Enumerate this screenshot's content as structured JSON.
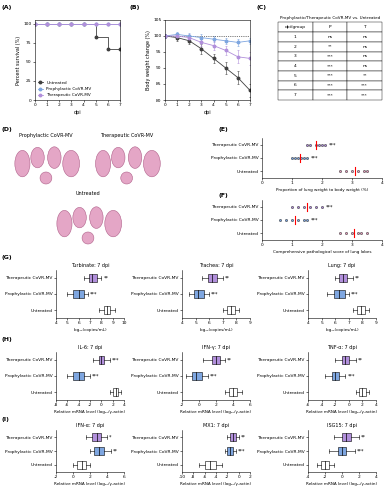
{
  "panel_labels": [
    "(A)",
    "(B)",
    "(C)",
    "(D)",
    "(E)",
    "(F)",
    "(G)",
    "(H)",
    "(I)"
  ],
  "chart_data": [
    {
      "type": "line",
      "x_label": "dpi",
      "y_label": "Percent survival (%)",
      "x": [
        0,
        1,
        2,
        3,
        4,
        5,
        6,
        7
      ],
      "xlim": [
        0,
        7
      ],
      "xticks": [
        0,
        1,
        2,
        3,
        4,
        5,
        6,
        7
      ],
      "ylim": [
        0,
        105
      ],
      "yticks": [
        0,
        25,
        50,
        75,
        100
      ],
      "legend": "lower left",
      "series": [
        {
          "name": "Untreated",
          "color": "#404040",
          "marker": "circle",
          "line_style": "steps",
          "values": [
            100,
            100,
            100,
            100,
            100,
            83,
            67,
            67
          ]
        },
        {
          "name": "Prophylactic CoVR-MV",
          "color": "#7ea6e0",
          "marker": "circle",
          "line_style": "steps",
          "values": [
            100,
            100,
            100,
            100,
            100,
            100,
            100,
            100
          ]
        },
        {
          "name": "Therapeutic CoVR-MV",
          "color": "#b18fdb",
          "marker": "circle",
          "line_style": "steps",
          "values": [
            100,
            100,
            100,
            100,
            100,
            100,
            100,
            100
          ]
        }
      ]
    },
    {
      "type": "line",
      "x_label": "dpi",
      "y_label": "Body weight change (%)",
      "x": [
        0,
        1,
        2,
        3,
        4,
        5,
        6,
        7
      ],
      "xlim": [
        0,
        7
      ],
      "xticks": [
        0,
        1,
        2,
        3,
        4,
        5,
        6,
        7
      ],
      "ylim": [
        80,
        105
      ],
      "yticks": [
        80,
        85,
        90,
        95,
        100,
        105
      ],
      "baseline": 100,
      "series": [
        {
          "name": "Untreated",
          "color": "#404040",
          "marker": "circle",
          "line_style": "solid",
          "values": [
            100,
            99.5,
            98.5,
            96,
            93,
            90,
            87,
            83
          ],
          "errors": [
            0.5,
            1,
            1,
            1.5,
            1.5,
            2,
            2,
            2
          ]
        },
        {
          "name": "Prophylactic CoVR-MV",
          "color": "#7ea6e0",
          "marker": "circle",
          "line_style": "solid",
          "values": [
            100,
            100.5,
            100,
            99.5,
            99,
            98.5,
            98,
            98.5
          ],
          "errors": [
            0.5,
            0.8,
            0.8,
            1,
            1,
            1,
            1,
            1
          ]
        },
        {
          "name": "Therapeutic CoVR-MV",
          "color": "#b18fdb",
          "marker": "circle",
          "line_style": "solid",
          "values": [
            100,
            100,
            99.5,
            98,
            97,
            95.5,
            93.5,
            93
          ],
          "errors": [
            0.5,
            0.8,
            1,
            1,
            1.5,
            1.5,
            2,
            2
          ]
        }
      ]
    },
    {
      "type": "dot",
      "orientation": "horizontal",
      "x_label": "Proportion of lung weight to body weight (%)",
      "categories": [
        "Therapeutic CoVR-MV",
        "Prophylactic CoVR-MV",
        "Untreated"
      ],
      "colors": [
        "#b18fdb",
        "#7ea6e0",
        "#e8a0c0"
      ],
      "values": [
        [
          1.5,
          1.6,
          1.8,
          1.9,
          2.0,
          2.1
        ],
        [
          1.0,
          1.1,
          1.2,
          1.3,
          1.4,
          1.5
        ],
        [
          2.6,
          2.8,
          3.0,
          3.2,
          3.4,
          3.5
        ]
      ],
      "means": [
        1.8,
        1.25,
        3.1
      ],
      "significance": [
        "***",
        "***",
        null
      ],
      "xlim": [
        0,
        4
      ],
      "xticks": [
        0,
        1,
        2,
        3,
        4
      ]
    },
    {
      "type": "dot",
      "orientation": "horizontal",
      "x_label": "Comprehensive pathological score of lung lobes",
      "categories": [
        "Therapeutic CoVR-MV",
        "Prophylactic CoVR-MV",
        "Untreated"
      ],
      "colors": [
        "#b18fdb",
        "#7ea6e0",
        "#e8a0c0"
      ],
      "values": [
        [
          1.0,
          1.2,
          1.4,
          1.6,
          1.8,
          2.0
        ],
        [
          0.6,
          0.8,
          1.0,
          1.2,
          1.4,
          1.5
        ],
        [
          2.6,
          2.8,
          3.0,
          3.2,
          3.3,
          3.5
        ]
      ],
      "means": [
        1.5,
        1.1,
        3.05
      ],
      "significance": [
        "***",
        "***",
        null
      ],
      "xlim": [
        0,
        4
      ],
      "xticks": [
        0,
        1,
        2,
        3,
        4
      ]
    },
    {
      "type": "box",
      "orientation": "horizontal",
      "title": "Turbinate: 7 dpi",
      "x_label": "log₁₀(copies/mL)",
      "categories": [
        "Therapeutic CoVR-MV",
        "Prophylactic CoVR-MV",
        "Untreated"
      ],
      "colors": [
        "#b18fdb",
        "#7ea6e0",
        "#ffffff"
      ],
      "box_stats": [
        {
          "min": 6.5,
          "q1": 6.9,
          "median": 7.2,
          "q3": 7.6,
          "max": 8.0
        },
        {
          "min": 5.0,
          "q1": 5.5,
          "median": 6.0,
          "q3": 6.5,
          "max": 6.8
        },
        {
          "min": 7.8,
          "q1": 8.2,
          "median": 8.5,
          "q3": 8.8,
          "max": 9.2
        }
      ],
      "significance": [
        "**",
        "***",
        null
      ],
      "xlim": [
        4,
        10
      ],
      "xticks": [
        4,
        5,
        6,
        7,
        8,
        9,
        10
      ]
    },
    {
      "type": "box",
      "orientation": "horizontal",
      "title": "Trachea: 7 dpi",
      "x_label": "log₁₀(copies/mL)",
      "categories": [
        "Therapeutic CoVR-MV",
        "Prophylactic CoVR-MV",
        "Untreated"
      ],
      "colors": [
        "#b18fdb",
        "#7ea6e0",
        "#ffffff"
      ],
      "box_stats": [
        {
          "min": 5.5,
          "q1": 5.9,
          "median": 6.2,
          "q3": 6.6,
          "max": 7.0
        },
        {
          "min": 4.5,
          "q1": 4.9,
          "median": 5.2,
          "q3": 5.6,
          "max": 6.0
        },
        {
          "min": 7.0,
          "q1": 7.3,
          "median": 7.6,
          "q3": 7.9,
          "max": 8.2
        }
      ],
      "significance": [
        "**",
        "***",
        null
      ],
      "xlim": [
        4,
        9
      ],
      "xticks": [
        4,
        5,
        6,
        7,
        8,
        9
      ]
    },
    {
      "type": "box",
      "orientation": "horizontal",
      "title": "Lung: 7 dpi",
      "x_label": "log₁₀(copies/mL)",
      "categories": [
        "Therapeutic CoVR-MV",
        "Prophylactic CoVR-MV",
        "Untreated"
      ],
      "colors": [
        "#b18fdb",
        "#7ea6e0",
        "#ffffff"
      ],
      "box_stats": [
        {
          "min": 6.0,
          "q1": 6.3,
          "median": 6.6,
          "q3": 6.9,
          "max": 7.3
        },
        {
          "min": 5.4,
          "q1": 5.9,
          "median": 6.3,
          "q3": 6.7,
          "max": 7.0
        },
        {
          "min": 7.3,
          "q1": 7.6,
          "median": 7.9,
          "q3": 8.2,
          "max": 8.5
        }
      ],
      "significance": [
        "**",
        "***",
        null
      ],
      "xlim": [
        4,
        9
      ],
      "xticks": [
        4,
        5,
        6,
        7,
        8,
        9
      ]
    },
    {
      "type": "box",
      "orientation": "horizontal",
      "title": "IL-6: 7 dpi",
      "x_label": "Relative mRNA level (log₁₀/γ-actin)",
      "categories": [
        "Therapeutic CoVR-MV",
        "Prophylactic CoVR-MV",
        "Untreated"
      ],
      "colors": [
        "#b18fdb",
        "#7ea6e0",
        "#ffffff"
      ],
      "box_stats": [
        {
          "min": -1.5,
          "q1": -0.5,
          "median": 0,
          "q3": 0.5,
          "max": 1.5
        },
        {
          "min": -6,
          "q1": -5,
          "median": -4,
          "q3": -3,
          "max": -2
        },
        {
          "min": 1.5,
          "q1": 2,
          "median": 2.5,
          "q3": 3,
          "max": 3.5
        }
      ],
      "significance": [
        "***",
        "***",
        null
      ],
      "xlim": [
        -8,
        4
      ],
      "xticks": [
        -8,
        -6,
        -4,
        -2,
        0,
        2,
        4
      ]
    },
    {
      "type": "box",
      "orientation": "horizontal",
      "title": "IFN-γ: 7 dpi",
      "x_label": "Relative mRNA level (log₁₀/γ-actin)",
      "categories": [
        "Therapeutic CoVR-MV",
        "Prophylactic CoVR-MV",
        "Untreated"
      ],
      "colors": [
        "#b18fdb",
        "#7ea6e0",
        "#ffffff"
      ],
      "box_stats": [
        {
          "min": 0.5,
          "q1": 1.5,
          "median": 2,
          "q3": 2.5,
          "max": 3
        },
        {
          "min": -1.5,
          "q1": -0.8,
          "median": -0.3,
          "q3": 0.3,
          "max": 1
        },
        {
          "min": 3,
          "q1": 3.5,
          "median": 4,
          "q3": 4.5,
          "max": 5
        }
      ],
      "significance": [
        "**",
        "***",
        null
      ],
      "xlim": [
        -2,
        6
      ],
      "xticks": [
        -2,
        0,
        2,
        4,
        6
      ]
    },
    {
      "type": "box",
      "orientation": "horizontal",
      "title": "TNF-α: 7 dpi",
      "x_label": "Relative mRNA level (log₁₀/γ-actin)",
      "categories": [
        "Therapeutic CoVR-MV",
        "Prophylactic CoVR-MV",
        "Untreated"
      ],
      "colors": [
        "#b18fdb",
        "#7ea6e0",
        "#ffffff"
      ],
      "box_stats": [
        {
          "min": -2,
          "q1": -1,
          "median": -0.5,
          "q3": 0,
          "max": 1
        },
        {
          "min": -3.5,
          "q1": -2.5,
          "median": -2,
          "q3": -1.5,
          "max": -0.5
        },
        {
          "min": 1,
          "q1": 1.5,
          "median": 2,
          "q3": 2.5,
          "max": 3
        }
      ],
      "significance": [
        "**",
        "***",
        null
      ],
      "xlim": [
        -6,
        4
      ],
      "xticks": [
        -6,
        -4,
        -2,
        0,
        2,
        4
      ]
    },
    {
      "type": "box",
      "orientation": "horizontal",
      "title": "IFN-α: 7 dpi",
      "x_label": "Relative mRNA level (log₁₀/γ-actin)",
      "categories": [
        "Therapeutic CoVR-MV",
        "Prophylactic CoVR-MV",
        "Untreated"
      ],
      "colors": [
        "#b18fdb",
        "#7ea6e0",
        "#ffffff"
      ],
      "box_stats": [
        {
          "min": 1.5,
          "q1": 2.2,
          "median": 2.8,
          "q3": 3.3,
          "max": 4
        },
        {
          "min": 2,
          "q1": 2.5,
          "median": 3,
          "q3": 3.6,
          "max": 4.5
        },
        {
          "min": 0,
          "q1": 0.5,
          "median": 1,
          "q3": 1.5,
          "max": 2
        }
      ],
      "significance": [
        "*",
        "**",
        null
      ],
      "xlim": [
        -2,
        6
      ],
      "xticks": [
        -2,
        0,
        2,
        4,
        6
      ]
    },
    {
      "type": "box",
      "orientation": "horizontal",
      "title": "MX1: 7 dpi",
      "x_label": "Relative mRNA level (log₁₀/γ-actin)",
      "categories": [
        "Therapeutic CoVR-MV",
        "Prophylactic CoVR-MV",
        "Untreated"
      ],
      "colors": [
        "#b18fdb",
        "#7ea6e0",
        "#ffffff"
      ],
      "box_stats": [
        {
          "min": -2,
          "q1": -1.5,
          "median": -1,
          "q3": -0.5,
          "max": 0
        },
        {
          "min": -2.5,
          "q1": -2,
          "median": -1.5,
          "q3": -1,
          "max": -0.5
        },
        {
          "min": -7,
          "q1": -6,
          "median": -5,
          "q3": -4,
          "max": -3
        }
      ],
      "significance": [
        "**",
        "***",
        null
      ],
      "xlim": [
        -10,
        2
      ],
      "xticks": [
        -10,
        -8,
        -6,
        -4,
        -2,
        0,
        2
      ]
    },
    {
      "type": "box",
      "orientation": "horizontal",
      "title": "ISG15: 7 dpi",
      "x_label": "Relative mRNA level (log₁₀/γ-actin)",
      "categories": [
        "Therapeutic CoVR-MV",
        "Prophylactic CoVR-MV",
        "Untreated"
      ],
      "colors": [
        "#b18fdb",
        "#7ea6e0",
        "#ffffff"
      ],
      "box_stats": [
        {
          "min": -1,
          "q1": 0,
          "median": 0.5,
          "q3": 1,
          "max": 2
        },
        {
          "min": -1.5,
          "q1": -0.5,
          "median": 0,
          "q3": 0.5,
          "max": 1.5
        },
        {
          "min": -3,
          "q1": -2.5,
          "median": -2,
          "q3": -1.5,
          "max": -1
        }
      ],
      "significance": [
        "**",
        "***",
        null
      ],
      "xlim": [
        -4,
        4
      ],
      "xticks": [
        -4,
        -2,
        0,
        2,
        4
      ]
    }
  ],
  "table": {
    "title": "Prophylactic/Therapeutic CoVR-MV vs. Untreated",
    "columns": [
      "dpi/group",
      "P",
      "T"
    ],
    "rows": [
      [
        1,
        "ns",
        "ns"
      ],
      [
        2,
        "**",
        "ns"
      ],
      [
        3,
        "***",
        "ns"
      ],
      [
        4,
        "***",
        "ns"
      ],
      [
        5,
        "***",
        "**"
      ],
      [
        6,
        "***",
        "***"
      ],
      [
        7,
        "***",
        "***"
      ]
    ]
  },
  "lung_images": {
    "labels": [
      "Prophylactic CoVR-MV",
      "Therapeutic CoVR-MV",
      "Untreated"
    ]
  }
}
